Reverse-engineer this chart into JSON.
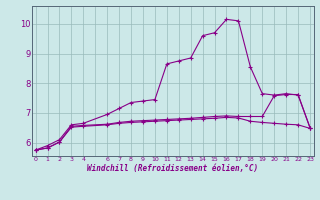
{
  "xlabel": "Windchill (Refroidissement éolien,°C)",
  "bg_color": "#cce8e8",
  "line_color": "#880088",
  "grid_color": "#99bbbb",
  "axis_color": "#556677",
  "y_ticks": [
    6,
    7,
    8,
    9,
    10
  ],
  "xlim": [
    -0.3,
    23.3
  ],
  "ylim": [
    5.55,
    10.6
  ],
  "line1_x": [
    0,
    1,
    2,
    3,
    4,
    6,
    7,
    8,
    9,
    10,
    11,
    12,
    13,
    14,
    15,
    16,
    17,
    18,
    19,
    20,
    21,
    22,
    23
  ],
  "line1_y": [
    5.75,
    5.9,
    6.1,
    6.6,
    6.65,
    6.95,
    7.15,
    7.35,
    7.4,
    7.45,
    8.65,
    8.75,
    8.85,
    9.6,
    9.7,
    10.15,
    10.1,
    8.55,
    7.65,
    7.6,
    7.65,
    7.6,
    6.5
  ],
  "line2_x": [
    0,
    1,
    2,
    3,
    4,
    6,
    7,
    8,
    9,
    10,
    11,
    12,
    13,
    14,
    15,
    16,
    17,
    18,
    19,
    20,
    21,
    22,
    23
  ],
  "line2_y": [
    5.75,
    5.82,
    6.02,
    6.52,
    6.55,
    6.6,
    6.65,
    6.68,
    6.7,
    6.72,
    6.74,
    6.76,
    6.78,
    6.8,
    6.82,
    6.85,
    6.83,
    6.72,
    6.68,
    6.65,
    6.62,
    6.6,
    6.48
  ],
  "line3_x": [
    0,
    1,
    2,
    3,
    4,
    6,
    7,
    8,
    9,
    10,
    11,
    12,
    13,
    14,
    15,
    16,
    17,
    18,
    19,
    20,
    21,
    22,
    23
  ],
  "line3_y": [
    5.75,
    5.82,
    6.02,
    6.55,
    6.58,
    6.62,
    6.68,
    6.72,
    6.74,
    6.76,
    6.78,
    6.8,
    6.82,
    6.85,
    6.88,
    6.9,
    6.88,
    6.88,
    6.88,
    7.58,
    7.62,
    7.62,
    6.5
  ]
}
